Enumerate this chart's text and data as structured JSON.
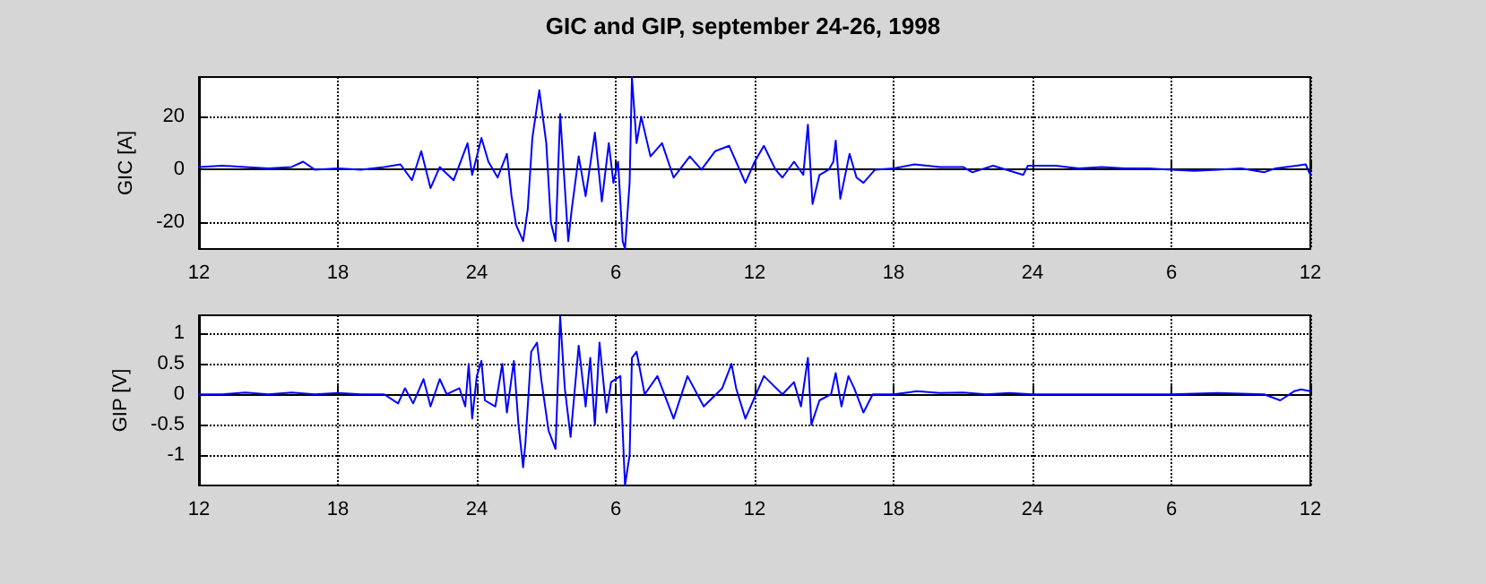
{
  "chart_data": [
    {
      "type": "line",
      "title": "GIC and GIP, september 24-26, 1998",
      "ylabel": "GIC [A]",
      "xlim": [
        "1998-09-24T12:00",
        "1998-09-26T12:00"
      ],
      "xticks": [
        {
          "value": "1998-09-24T12:00",
          "label": "12"
        },
        {
          "value": "1998-09-24T18:00",
          "label": "18"
        },
        {
          "value": "1998-09-25T00:00",
          "label": "24"
        },
        {
          "value": "1998-09-25T06:00",
          "label": "6"
        },
        {
          "value": "1998-09-25T12:00",
          "label": "12"
        },
        {
          "value": "1998-09-25T18:00",
          "label": "18"
        },
        {
          "value": "1998-09-26T00:00",
          "label": "24"
        },
        {
          "value": "1998-09-26T06:00",
          "label": "6"
        },
        {
          "value": "1998-09-26T12:00",
          "label": "12"
        }
      ],
      "ylim": [
        -30,
        35
      ],
      "yticks": [
        -20,
        0,
        20
      ],
      "grid": true,
      "marker": "none",
      "line_style": "solid",
      "series": [
        {
          "color": "#0000ff",
          "x": [
            "1998-09-24T12:00",
            "1998-09-24T13:00",
            "1998-09-24T14:00",
            "1998-09-24T15:00",
            "1998-09-24T16:00",
            "1998-09-24T16:30",
            "1998-09-24T17:00",
            "1998-09-24T18:00",
            "1998-09-24T19:00",
            "1998-09-24T20:00",
            "1998-09-24T20:42",
            "1998-09-24T21:12",
            "1998-09-24T21:36",
            "1998-09-24T22:00",
            "1998-09-24T22:24",
            "1998-09-24T23:00",
            "1998-09-24T23:36",
            "1998-09-24T23:48",
            "1998-09-25T00:12",
            "1998-09-25T00:30",
            "1998-09-25T00:54",
            "1998-09-25T01:18",
            "1998-09-25T01:30",
            "1998-09-25T01:42",
            "1998-09-25T02:00",
            "1998-09-25T02:12",
            "1998-09-25T02:24",
            "1998-09-25T02:42",
            "1998-09-25T03:00",
            "1998-09-25T03:12",
            "1998-09-25T03:24",
            "1998-09-25T03:36",
            "1998-09-25T03:57",
            "1998-09-25T04:06",
            "1998-09-25T04:24",
            "1998-09-25T04:42",
            "1998-09-25T05:06",
            "1998-09-25T05:24",
            "1998-09-25T05:42",
            "1998-09-25T05:54",
            "1998-09-25T06:06",
            "1998-09-25T06:18",
            "1998-09-25T06:24",
            "1998-09-25T06:36",
            "1998-09-25T06:42",
            "1998-09-25T06:54",
            "1998-09-25T07:06",
            "1998-09-25T07:30",
            "1998-09-25T08:00",
            "1998-09-25T08:30",
            "1998-09-25T09:12",
            "1998-09-25T09:42",
            "1998-09-25T10:18",
            "1998-09-25T10:54",
            "1998-09-25T11:36",
            "1998-09-25T12:00",
            "1998-09-25T12:24",
            "1998-09-25T12:54",
            "1998-09-25T13:12",
            "1998-09-25T13:42",
            "1998-09-25T14:06",
            "1998-09-25T14:18",
            "1998-09-25T14:30",
            "1998-09-25T14:48",
            "1998-09-25T15:12",
            "1998-09-25T15:24",
            "1998-09-25T15:30",
            "1998-09-25T15:42",
            "1998-09-25T16:06",
            "1998-09-25T16:24",
            "1998-09-25T16:42",
            "1998-09-25T17:12",
            "1998-09-25T18:00",
            "1998-09-25T18:54",
            "1998-09-25T20:00",
            "1998-09-25T21:00",
            "1998-09-25T21:24",
            "1998-09-25T22:18",
            "1998-09-25T23:36",
            "1998-09-25T23:48",
            "1998-09-26T01:00",
            "1998-09-26T02:00",
            "1998-09-26T03:00",
            "1998-09-26T04:00",
            "1998-09-26T05:00",
            "1998-09-26T06:00",
            "1998-09-26T07:00",
            "1998-09-26T08:00",
            "1998-09-26T09:00",
            "1998-09-26T10:00",
            "1998-09-26T10:30",
            "1998-09-26T11:24",
            "1998-09-26T11:48",
            "1998-09-26T12:00"
          ],
          "values": [
            1,
            1.5,
            1,
            0.5,
            1,
            3,
            0,
            0.5,
            0,
            1,
            2,
            -4,
            7,
            -7,
            1,
            -4,
            10,
            -2,
            12,
            3,
            -3,
            6,
            -10,
            -21,
            -27,
            -15,
            12,
            30,
            10,
            -20,
            -27,
            21,
            -27,
            -15,
            5,
            -10,
            14,
            -12,
            10,
            -5,
            3,
            -27,
            -30,
            -5,
            35,
            10,
            20,
            5,
            10,
            -3,
            5,
            0,
            7,
            9,
            -5,
            3,
            9,
            0,
            -3,
            3,
            -2,
            17,
            -13,
            -2,
            0,
            3,
            11,
            -11,
            6,
            -3,
            -5,
            0,
            0.5,
            2,
            1,
            1,
            -1,
            1.5,
            -2,
            1.5,
            1.5,
            0.5,
            1,
            0.5,
            0.5,
            0,
            -0.5,
            0,
            0.5,
            -1,
            0.5,
            1.5,
            2,
            -2
          ]
        }
      ]
    },
    {
      "type": "line",
      "ylabel": "GIP [V]",
      "xlim": [
        "1998-09-24T12:00",
        "1998-09-26T12:00"
      ],
      "xticks": [
        {
          "value": "1998-09-24T12:00",
          "label": "12"
        },
        {
          "value": "1998-09-24T18:00",
          "label": "18"
        },
        {
          "value": "1998-09-25T00:00",
          "label": "24"
        },
        {
          "value": "1998-09-25T06:00",
          "label": "6"
        },
        {
          "value": "1998-09-25T12:00",
          "label": "12"
        },
        {
          "value": "1998-09-25T18:00",
          "label": "18"
        },
        {
          "value": "1998-09-26T00:00",
          "label": "24"
        },
        {
          "value": "1998-09-26T06:00",
          "label": "6"
        },
        {
          "value": "1998-09-26T12:00",
          "label": "12"
        }
      ],
      "ylim": [
        -1.5,
        1.3
      ],
      "yticks": [
        -1,
        -0.5,
        0,
        0.5,
        1
      ],
      "grid": true,
      "marker": "none",
      "line_style": "solid",
      "series": [
        {
          "color": "#0000ff",
          "x": [
            "1998-09-24T12:00",
            "1998-09-24T13:00",
            "1998-09-24T14:00",
            "1998-09-24T15:00",
            "1998-09-24T16:00",
            "1998-09-24T17:00",
            "1998-09-24T18:00",
            "1998-09-24T19:00",
            "1998-09-24T20:00",
            "1998-09-24T20:36",
            "1998-09-24T20:54",
            "1998-09-24T21:15",
            "1998-09-24T21:42",
            "1998-09-24T22:00",
            "1998-09-24T22:24",
            "1998-09-24T22:42",
            "1998-09-24T23:15",
            "1998-09-24T23:30",
            "1998-09-24T23:39",
            "1998-09-24T23:48",
            "1998-09-25T00:00",
            "1998-09-25T00:12",
            "1998-09-25T00:21",
            "1998-09-25T00:48",
            "1998-09-25T01:06",
            "1998-09-25T01:18",
            "1998-09-25T01:36",
            "1998-09-25T01:48",
            "1998-09-25T02:00",
            "1998-09-25T02:06",
            "1998-09-25T02:21",
            "1998-09-25T02:36",
            "1998-09-25T02:48",
            "1998-09-25T03:06",
            "1998-09-25T03:24",
            "1998-09-25T03:36",
            "1998-09-25T03:48",
            "1998-09-25T04:03",
            "1998-09-25T04:24",
            "1998-09-25T04:42",
            "1998-09-25T04:54",
            "1998-09-25T05:06",
            "1998-09-25T05:18",
            "1998-09-25T05:36",
            "1998-09-25T05:48",
            "1998-09-25T06:12",
            "1998-09-25T06:24",
            "1998-09-25T06:36",
            "1998-09-25T06:42",
            "1998-09-25T06:54",
            "1998-09-25T07:15",
            "1998-09-25T07:48",
            "1998-09-25T08:30",
            "1998-09-25T09:06",
            "1998-09-25T09:48",
            "1998-09-25T10:36",
            "1998-09-25T11:00",
            "1998-09-25T11:12",
            "1998-09-25T11:36",
            "1998-09-25T12:24",
            "1998-09-25T13:12",
            "1998-09-25T13:42",
            "1998-09-25T14:00",
            "1998-09-25T14:18",
            "1998-09-25T14:27",
            "1998-09-25T14:48",
            "1998-09-25T15:18",
            "1998-09-25T15:30",
            "1998-09-25T15:45",
            "1998-09-25T16:03",
            "1998-09-25T16:18",
            "1998-09-25T16:42",
            "1998-09-25T17:06",
            "1998-09-25T18:00",
            "1998-09-25T19:00",
            "1998-09-25T20:00",
            "1998-09-25T21:00",
            "1998-09-25T22:00",
            "1998-09-25T23:00",
            "1998-09-26T00:00",
            "1998-09-26T02:00",
            "1998-09-26T04:00",
            "1998-09-26T06:00",
            "1998-09-26T08:00",
            "1998-09-26T10:00",
            "1998-09-26T10:42",
            "1998-09-26T11:18",
            "1998-09-26T11:36",
            "1998-09-26T12:00"
          ],
          "values": [
            0,
            0,
            0.03,
            0,
            0.03,
            0,
            0.02,
            0,
            0,
            -0.15,
            0.1,
            -0.15,
            0.25,
            -0.2,
            0.25,
            0,
            0.1,
            -0.2,
            0.5,
            -0.4,
            0.3,
            0.55,
            -0.1,
            -0.2,
            0.5,
            -0.3,
            0.55,
            -0.5,
            -1.2,
            -0.8,
            0.7,
            0.85,
            0.2,
            -0.6,
            -0.9,
            1.28,
            0.1,
            -0.7,
            0.8,
            -0.2,
            0.6,
            -0.5,
            0.85,
            -0.3,
            0.2,
            0.3,
            -1.5,
            -1,
            0.6,
            0.7,
            0,
            0.3,
            -0.4,
            0.3,
            -0.2,
            0.1,
            0.5,
            0.1,
            -0.4,
            0.3,
            0,
            0.2,
            -0.2,
            0.6,
            -0.5,
            -0.1,
            0,
            0.35,
            -0.2,
            0.3,
            0.1,
            -0.3,
            0,
            0,
            0.05,
            0.02,
            0.03,
            0,
            0.02,
            0,
            0,
            0,
            0,
            0.02,
            0,
            -0.1,
            0.05,
            0.08,
            0.05
          ]
        }
      ]
    }
  ]
}
